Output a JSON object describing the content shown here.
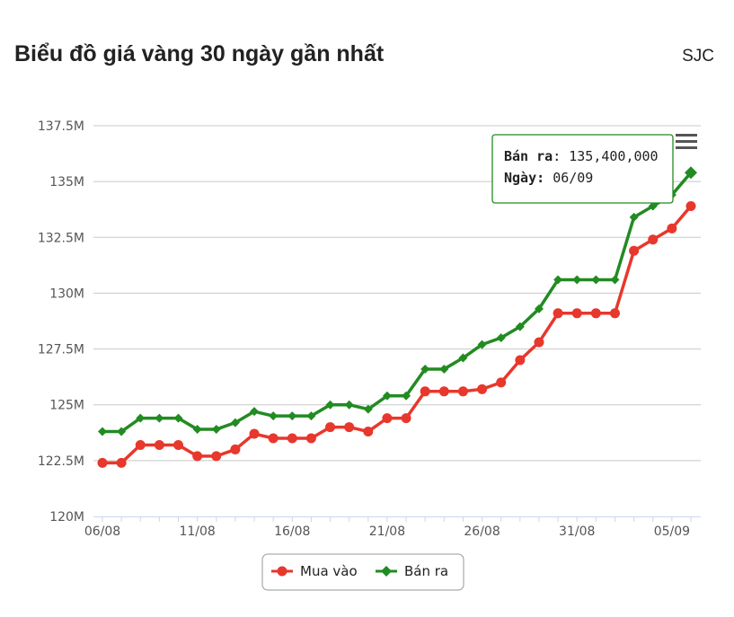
{
  "header": {
    "title": "Biểu đồ giá vàng 30 ngày gần nhất",
    "brand": "SJC"
  },
  "menu_icon": "hamburger-menu-icon",
  "tooltip": {
    "series_label": "Bán ra",
    "value": "135,400,000",
    "date_label": "Ngày",
    "date": "06/09"
  },
  "chart_data": {
    "type": "line",
    "title": "Biểu đồ giá vàng 30 ngày gần nhất",
    "xlabel": "",
    "ylabel": "",
    "x": [
      "06/08",
      "07/08",
      "08/08",
      "09/08",
      "10/08",
      "11/08",
      "12/08",
      "13/08",
      "14/08",
      "15/08",
      "16/08",
      "17/08",
      "18/08",
      "19/08",
      "20/08",
      "21/08",
      "22/08",
      "23/08",
      "24/08",
      "25/08",
      "26/08",
      "27/08",
      "28/08",
      "29/08",
      "30/08",
      "31/08",
      "01/09",
      "02/09",
      "03/09",
      "04/09",
      "05/09",
      "06/09"
    ],
    "x_tick_labels": [
      "06/08",
      "11/08",
      "16/08",
      "21/08",
      "26/08",
      "31/08",
      "05/09"
    ],
    "y_tick_labels": [
      "120M",
      "122.5M",
      "125M",
      "127.5M",
      "130M",
      "132.5M",
      "135M",
      "137.5M"
    ],
    "ylim": [
      120000000,
      137500000
    ],
    "grid": true,
    "legend_position": "bottom-center",
    "series": [
      {
        "name": "Mua vào",
        "color": "#e8372c",
        "marker": "circle",
        "values": [
          122400000,
          122400000,
          123200000,
          123200000,
          123200000,
          122700000,
          122700000,
          123000000,
          123700000,
          123500000,
          123500000,
          123500000,
          124000000,
          124000000,
          123800000,
          124400000,
          124400000,
          125600000,
          125600000,
          125600000,
          125700000,
          126000000,
          127000000,
          127800000,
          129100000,
          129100000,
          129100000,
          129100000,
          131900000,
          132400000,
          132900000,
          133900000
        ]
      },
      {
        "name": "Bán ra",
        "color": "#228b22",
        "marker": "diamond",
        "values": [
          123800000,
          123800000,
          124400000,
          124400000,
          124400000,
          123900000,
          123900000,
          124200000,
          124700000,
          124500000,
          124500000,
          124500000,
          125000000,
          125000000,
          124800000,
          125400000,
          125400000,
          126600000,
          126600000,
          127100000,
          127700000,
          128000000,
          128500000,
          129300000,
          130600000,
          130600000,
          130600000,
          130600000,
          133400000,
          133900000,
          134400000,
          135400000
        ]
      }
    ]
  }
}
